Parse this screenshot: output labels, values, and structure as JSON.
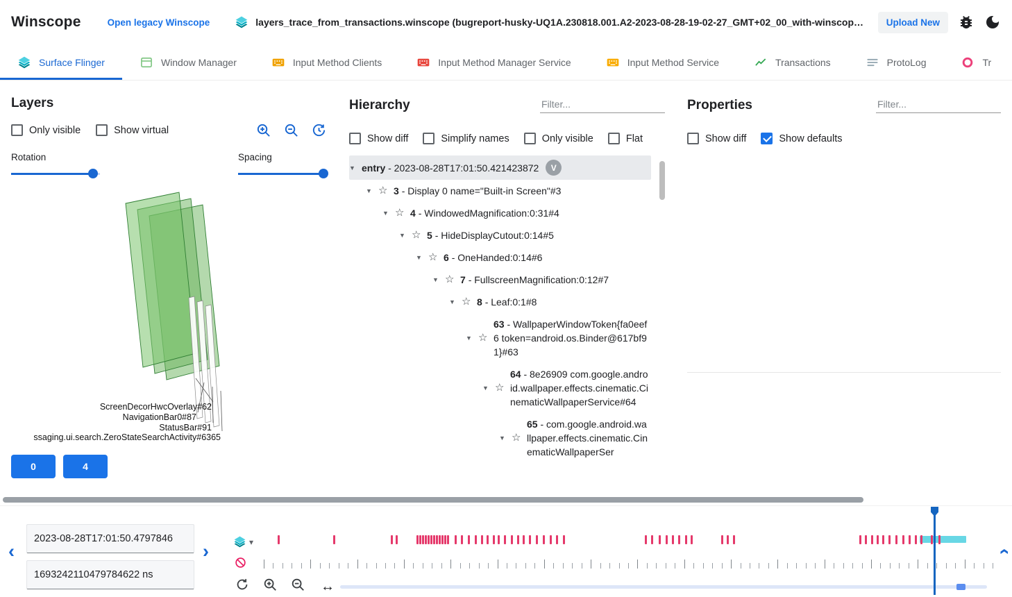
{
  "topbar": {
    "title": "Winscope",
    "legacy_link": "Open legacy Winscope",
    "trace_file": "layers_trace_from_transactions.winscope (bugreport-husky-UQ1A.230818.001.A2-2023-08-28-19-02-27_GMT+02_00_with-winscope_REDACTED.zip)",
    "upload_button": "Upload New"
  },
  "tabs": [
    {
      "label": "Surface Flinger",
      "icon": "layers-icon",
      "active": true
    },
    {
      "label": "Window Manager",
      "icon": "window-icon",
      "active": false
    },
    {
      "label": "Input Method Clients",
      "icon": "keyboard-icon",
      "active": false
    },
    {
      "label": "Input Method Manager Service",
      "icon": "keyboard-icon",
      "active": false
    },
    {
      "label": "Input Method Service",
      "icon": "keyboard-icon",
      "active": false
    },
    {
      "label": "Transactions",
      "icon": "chart-icon",
      "active": false
    },
    {
      "label": "ProtoLog",
      "icon": "list-icon",
      "active": false
    },
    {
      "label": "Tr",
      "icon": "circle-icon",
      "active": false
    }
  ],
  "layers_panel": {
    "title": "Layers",
    "checkboxes": [
      {
        "label": "Only visible",
        "checked": false
      },
      {
        "label": "Show virtual",
        "checked": false
      }
    ],
    "rotation_label": "Rotation",
    "spacing_label": "Spacing",
    "rotation_percent": 92,
    "spacing_percent": 96,
    "scene_labels": [
      "ScreenDecorHwcOverlay#62",
      "NavigationBar0#87",
      "StatusBar#91",
      "ssaging.ui.search.ZeroStateSearchActivity#6365"
    ],
    "buttons": [
      "0",
      "4"
    ]
  },
  "hierarchy_panel": {
    "title": "Hierarchy",
    "filter_placeholder": "Filter...",
    "checkboxes": [
      {
        "label": "Show diff",
        "checked": false
      },
      {
        "label": "Simplify names",
        "checked": false
      },
      {
        "label": "Only visible",
        "checked": false
      },
      {
        "label": "Flat",
        "checked": false
      }
    ],
    "tree": [
      {
        "id": "entry",
        "text": "- 2023-08-28T17:01:50.421423872",
        "depth": 0,
        "badge": "V",
        "selected": true,
        "star": false
      },
      {
        "id": "3",
        "text": "- Display 0 name=\"Built-in Screen\"#3",
        "depth": 1,
        "star": true
      },
      {
        "id": "4",
        "text": "- WindowedMagnification:0:31#4",
        "depth": 2,
        "star": true
      },
      {
        "id": "5",
        "text": "- HideDisplayCutout:0:14#5",
        "depth": 3,
        "star": true
      },
      {
        "id": "6",
        "text": "- OneHanded:0:14#6",
        "depth": 4,
        "star": true
      },
      {
        "id": "7",
        "text": "- FullscreenMagnification:0:12#7",
        "depth": 5,
        "star": true
      },
      {
        "id": "8",
        "text": "- Leaf:0:1#8",
        "depth": 6,
        "star": true
      },
      {
        "id": "63",
        "text": "- WallpaperWindowToken{fa0eef6 token=android.os.Binder@617bf91}#63",
        "depth": 7,
        "star": true
      },
      {
        "id": "64",
        "text": "- 8e26909 com.google.android.wallpaper.effects.cinematic.CinematicWallpaperService#64",
        "depth": 8,
        "star": true
      },
      {
        "id": "65",
        "text": "- com.google.android.wallpaper.effects.cinematic.CinematicWallpaperSer",
        "depth": 9,
        "star": true
      }
    ]
  },
  "properties_panel": {
    "title": "Properties",
    "filter_placeholder": "Filter...",
    "checkboxes": [
      {
        "label": "Show diff",
        "checked": false
      },
      {
        "label": "Show defaults",
        "checked": true
      }
    ]
  },
  "timeline": {
    "timestamp_human": "2023-08-28T17:01:50.4797846",
    "timestamp_ns": "1693242110479784622 ns",
    "marks": [
      20,
      100,
      183,
      190,
      220,
      224,
      228,
      232,
      236,
      240,
      244,
      248,
      252,
      256,
      260,
      264,
      275,
      284,
      294,
      304,
      313,
      321,
      330,
      337,
      346,
      356,
      365,
      373,
      382,
      392,
      402,
      412,
      421,
      431,
      549,
      558,
      569,
      579,
      588,
      597,
      607,
      615,
      659,
      667,
      676,
      858,
      866,
      875,
      883,
      891,
      900,
      910,
      920,
      929,
      938,
      946,
      961,
      972
    ],
    "selection": {
      "start": 945,
      "width": 67
    },
    "cursor": 965
  },
  "icons": {
    "collapse_arrow": "▼",
    "star": "☆",
    "caret_down": "▾",
    "chevron_left": "‹",
    "chevron_right": "›",
    "drag_horizontal": "↔"
  },
  "colors": {
    "accent_blue": "#1a73e8",
    "primary_blue": "#1967d2",
    "mark_pink": "#e5396b",
    "selection_teal": "#4dd0e1",
    "layers_teal": "#00acc1",
    "layer_green": "#69b35c",
    "cursor_blue": "#1565c0"
  }
}
